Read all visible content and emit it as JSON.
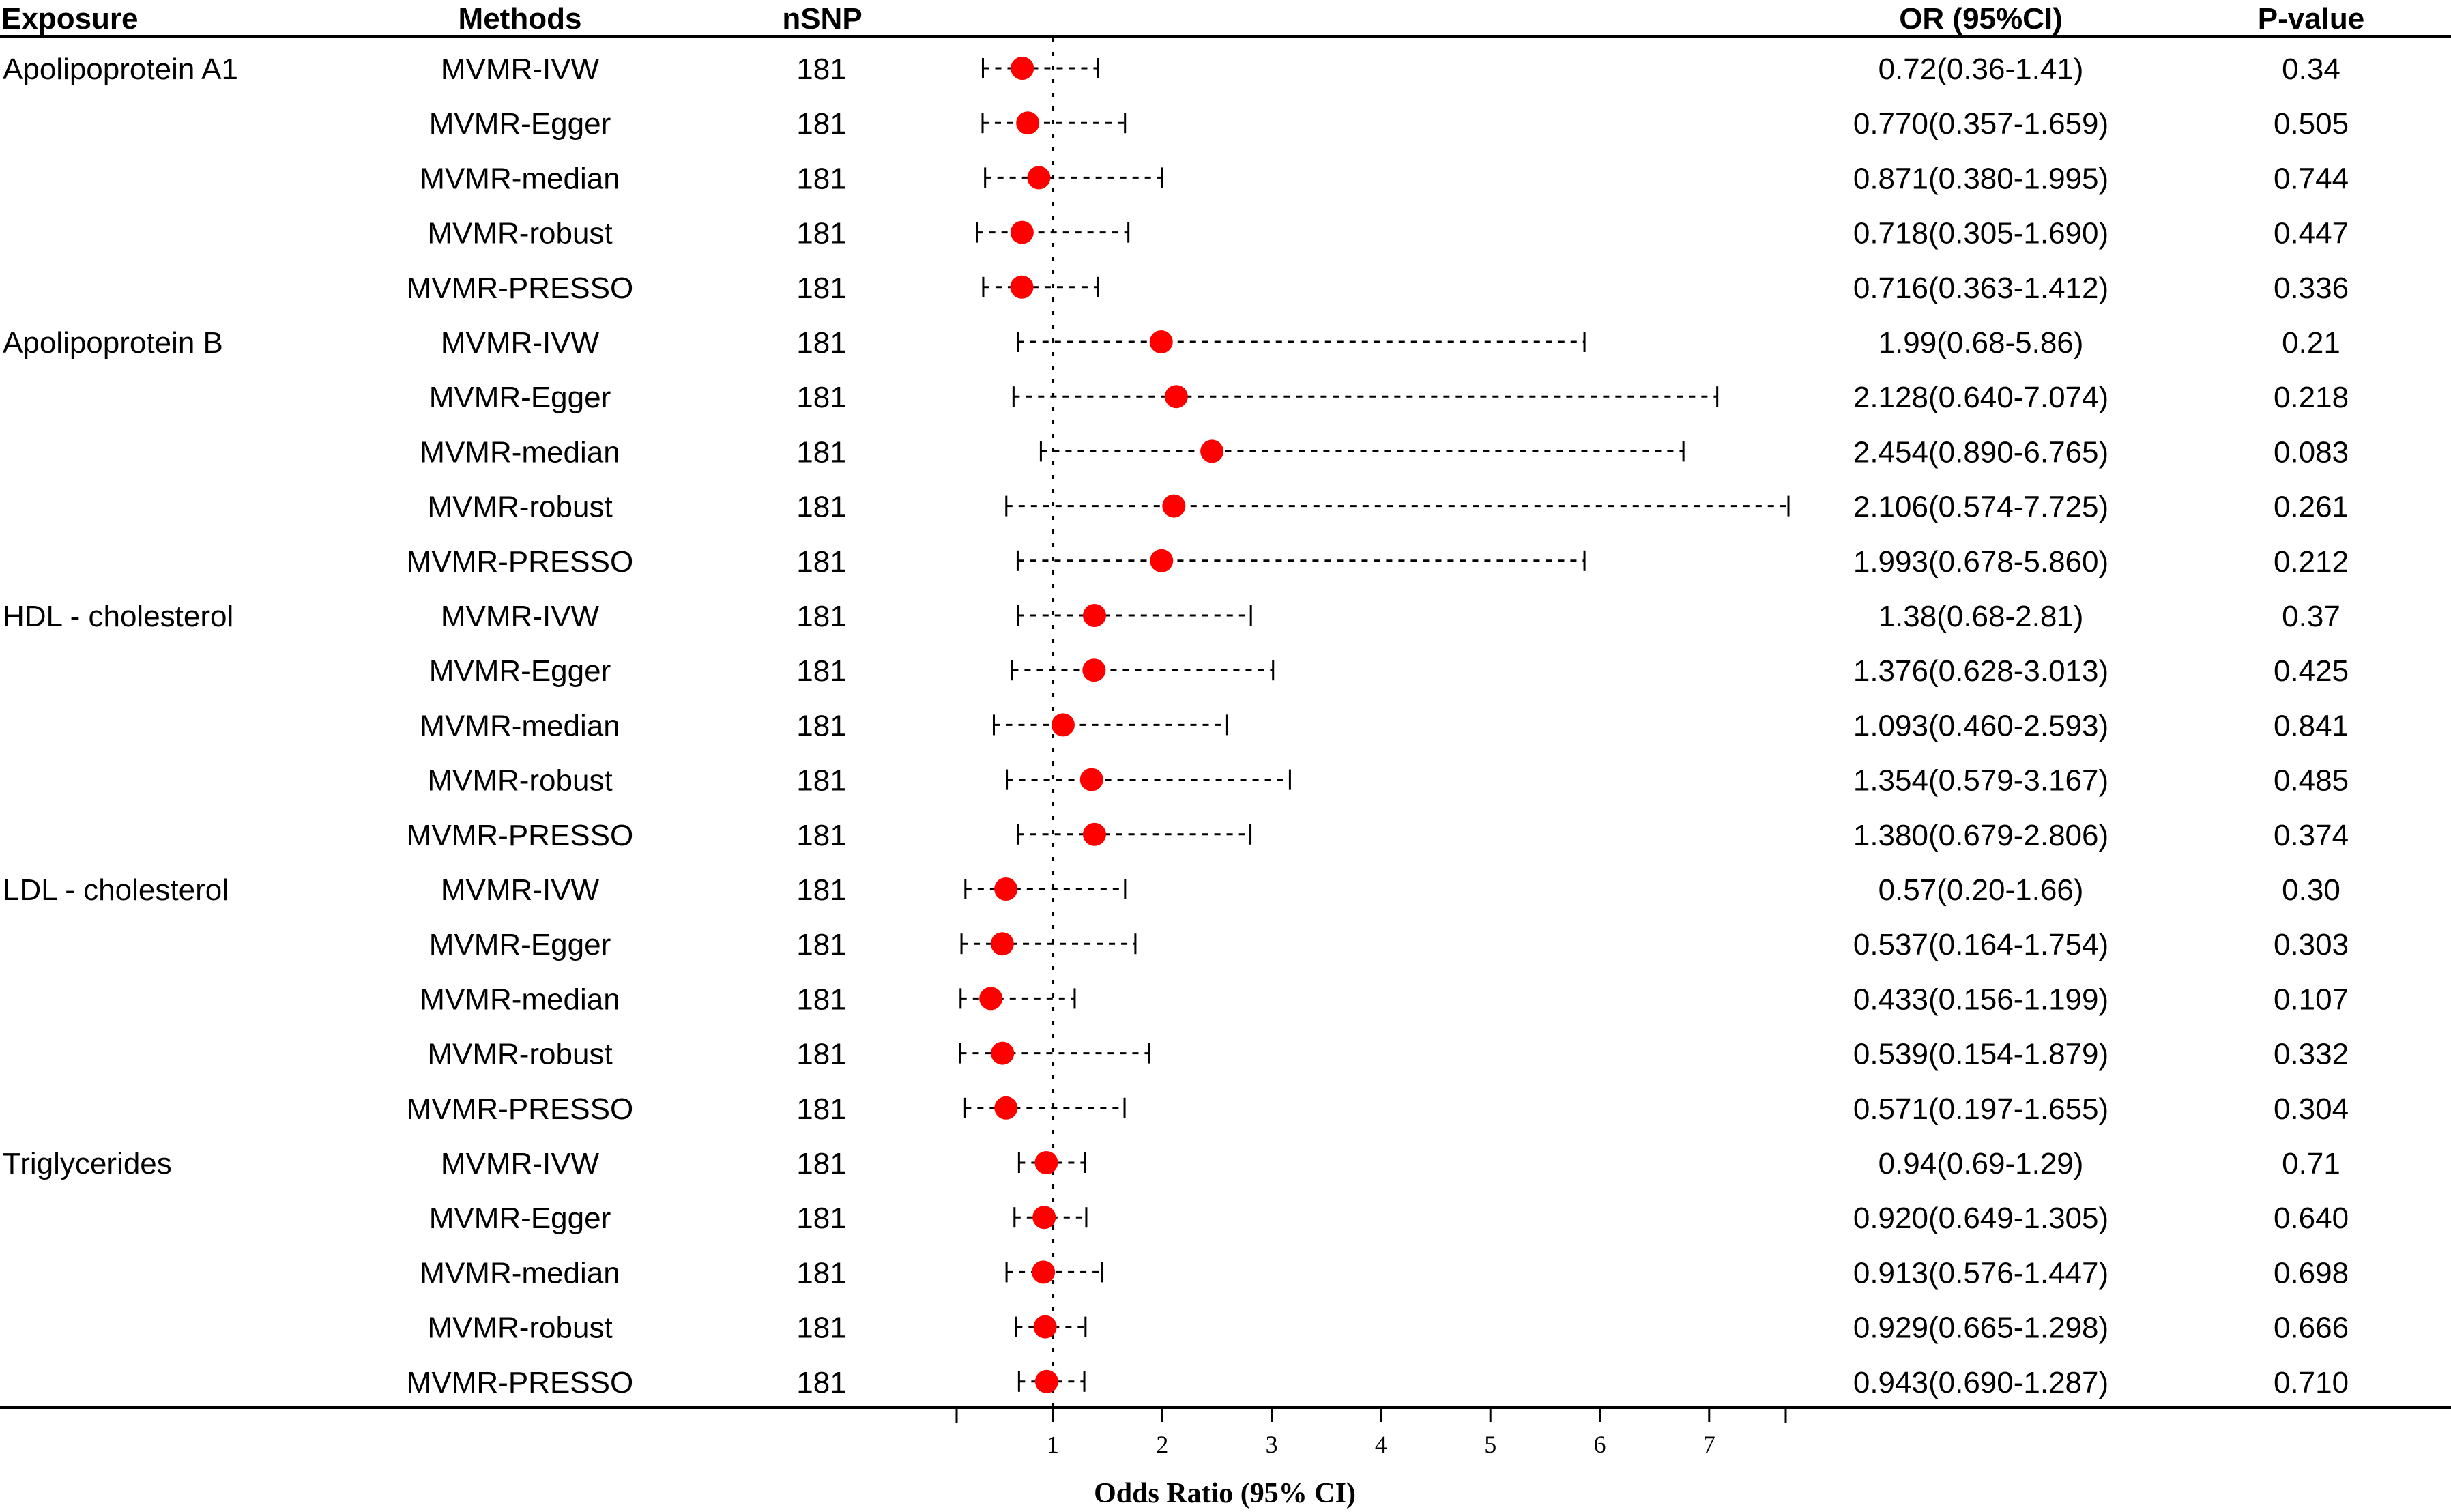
{
  "chart_data": {
    "type": "forest",
    "columns": {
      "exposure": "Exposure",
      "methods": "Methods",
      "nsnp": "nSNP",
      "or": "OR (95%CI)",
      "pvalue": "P-value"
    },
    "xlabel": "Odds Ratio (95% CI)",
    "xlim": [
      0.12,
      7.7
    ],
    "xticks": [
      "1",
      "2",
      "3",
      "4",
      "5",
      "6",
      "7"
    ],
    "reference_line": 1,
    "point_color": "#ff0000",
    "rows": [
      {
        "exposure": "Apolipoprotein A1",
        "method": "MVMR-IVW",
        "nsnp": "181",
        "or": 0.72,
        "lo": 0.36,
        "hi": 1.41,
        "or_text": "0.72(0.36-1.41)",
        "p": "0.34"
      },
      {
        "exposure": "",
        "method": "MVMR-Egger",
        "nsnp": "181",
        "or": 0.77,
        "lo": 0.357,
        "hi": 1.659,
        "or_text": "0.770(0.357-1.659)",
        "p": "0.505"
      },
      {
        "exposure": "",
        "method": "MVMR-median",
        "nsnp": "181",
        "or": 0.871,
        "lo": 0.38,
        "hi": 1.995,
        "or_text": "0.871(0.380-1.995)",
        "p": "0.744"
      },
      {
        "exposure": "",
        "method": "MVMR-robust",
        "nsnp": "181",
        "or": 0.718,
        "lo": 0.305,
        "hi": 1.69,
        "or_text": "0.718(0.305-1.690)",
        "p": "0.447"
      },
      {
        "exposure": "",
        "method": "MVMR-PRESSO",
        "nsnp": "181",
        "or": 0.716,
        "lo": 0.363,
        "hi": 1.412,
        "or_text": "0.716(0.363-1.412)",
        "p": "0.336"
      },
      {
        "exposure": "Apolipoprotein B",
        "method": "MVMR-IVW",
        "nsnp": "181",
        "or": 1.99,
        "lo": 0.68,
        "hi": 5.86,
        "or_text": "1.99(0.68-5.86)",
        "p": "0.21"
      },
      {
        "exposure": "",
        "method": "MVMR-Egger",
        "nsnp": "181",
        "or": 2.128,
        "lo": 0.64,
        "hi": 7.074,
        "or_text": "2.128(0.640-7.074)",
        "p": "0.218"
      },
      {
        "exposure": "",
        "method": "MVMR-median",
        "nsnp": "181",
        "or": 2.454,
        "lo": 0.89,
        "hi": 6.765,
        "or_text": "2.454(0.890-6.765)",
        "p": "0.083"
      },
      {
        "exposure": "",
        "method": "MVMR-robust",
        "nsnp": "181",
        "or": 2.106,
        "lo": 0.574,
        "hi": 7.725,
        "or_text": "2.106(0.574-7.725)",
        "p": "0.261"
      },
      {
        "exposure": "",
        "method": "MVMR-PRESSO",
        "nsnp": "181",
        "or": 1.993,
        "lo": 0.678,
        "hi": 5.86,
        "or_text": "1.993(0.678-5.860)",
        "p": "0.212"
      },
      {
        "exposure": "HDL - cholesterol",
        "method": "MVMR-IVW",
        "nsnp": "181",
        "or": 1.38,
        "lo": 0.68,
        "hi": 2.81,
        "or_text": "1.38(0.68-2.81)",
        "p": "0.37"
      },
      {
        "exposure": "",
        "method": "MVMR-Egger",
        "nsnp": "181",
        "or": 1.376,
        "lo": 0.628,
        "hi": 3.013,
        "or_text": "1.376(0.628-3.013)",
        "p": "0.425"
      },
      {
        "exposure": "",
        "method": "MVMR-median",
        "nsnp": "181",
        "or": 1.093,
        "lo": 0.46,
        "hi": 2.593,
        "or_text": "1.093(0.460-2.593)",
        "p": "0.841"
      },
      {
        "exposure": "",
        "method": "MVMR-robust",
        "nsnp": "181",
        "or": 1.354,
        "lo": 0.579,
        "hi": 3.167,
        "or_text": "1.354(0.579-3.167)",
        "p": "0.485"
      },
      {
        "exposure": "",
        "method": "MVMR-PRESSO",
        "nsnp": "181",
        "or": 1.38,
        "lo": 0.679,
        "hi": 2.806,
        "or_text": "1.380(0.679-2.806)",
        "p": "0.374"
      },
      {
        "exposure": "LDL - cholesterol",
        "method": "MVMR-IVW",
        "nsnp": "181",
        "or": 0.57,
        "lo": 0.2,
        "hi": 1.66,
        "or_text": "0.57(0.20-1.66)",
        "p": "0.30"
      },
      {
        "exposure": "",
        "method": "MVMR-Egger",
        "nsnp": "181",
        "or": 0.537,
        "lo": 0.164,
        "hi": 1.754,
        "or_text": "0.537(0.164-1.754)",
        "p": "0.303"
      },
      {
        "exposure": "",
        "method": "MVMR-median",
        "nsnp": "181",
        "or": 0.433,
        "lo": 0.156,
        "hi": 1.199,
        "or_text": "0.433(0.156-1.199)",
        "p": "0.107"
      },
      {
        "exposure": "",
        "method": "MVMR-robust",
        "nsnp": "181",
        "or": 0.539,
        "lo": 0.154,
        "hi": 1.879,
        "or_text": "0.539(0.154-1.879)",
        "p": "0.332"
      },
      {
        "exposure": "",
        "method": "MVMR-PRESSO",
        "nsnp": "181",
        "or": 0.571,
        "lo": 0.197,
        "hi": 1.655,
        "or_text": "0.571(0.197-1.655)",
        "p": "0.304"
      },
      {
        "exposure": "Triglycerides",
        "method": "MVMR-IVW",
        "nsnp": "181",
        "or": 0.94,
        "lo": 0.69,
        "hi": 1.29,
        "or_text": "0.94(0.69-1.29)",
        "p": "0.71"
      },
      {
        "exposure": "",
        "method": "MVMR-Egger",
        "nsnp": "181",
        "or": 0.92,
        "lo": 0.649,
        "hi": 1.305,
        "or_text": "0.920(0.649-1.305)",
        "p": "0.640"
      },
      {
        "exposure": "",
        "method": "MVMR-median",
        "nsnp": "181",
        "or": 0.913,
        "lo": 0.576,
        "hi": 1.447,
        "or_text": "0.913(0.576-1.447)",
        "p": "0.698"
      },
      {
        "exposure": "",
        "method": "MVMR-robust",
        "nsnp": "181",
        "or": 0.929,
        "lo": 0.665,
        "hi": 1.298,
        "or_text": "0.929(0.665-1.298)",
        "p": "0.666"
      },
      {
        "exposure": "",
        "method": "MVMR-PRESSO",
        "nsnp": "181",
        "or": 0.943,
        "lo": 0.69,
        "hi": 1.287,
        "or_text": "0.943(0.690-1.287)",
        "p": "0.710"
      }
    ]
  }
}
